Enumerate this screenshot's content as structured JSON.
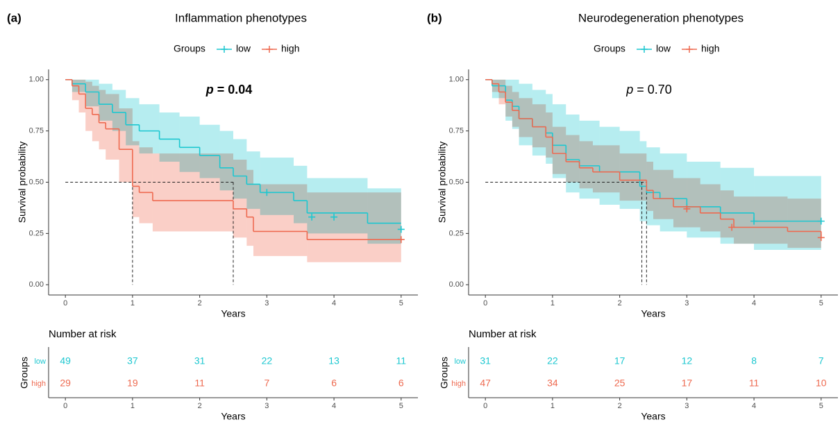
{
  "chart_data": [
    {
      "type": "survival",
      "panel": "(a)",
      "title": "Inflammation phenotypes",
      "legend_title": "Groups",
      "xlabel": "Years",
      "ylabel": "Survival probability",
      "xlim": [
        -0.25,
        5.25
      ],
      "ylim": [
        -0.05,
        1.05
      ],
      "xticks": [
        0,
        1,
        2,
        3,
        4,
        5
      ],
      "yticks": [
        {
          "value": 0,
          "label": "0.00"
        },
        {
          "value": 0.25,
          "label": "0.25"
        },
        {
          "value": 0.5,
          "label": "0.50"
        },
        {
          "value": 0.75,
          "label": "0.75"
        },
        {
          "value": 1,
          "label": "1.00"
        }
      ],
      "annotation": {
        "italic": "p",
        "text": "= 0.04",
        "bold": true
      },
      "median_y": 0.5,
      "medians": [
        1.0,
        2.5
      ],
      "risk_table": {
        "title": "Number at risk",
        "ylabel": "Groups",
        "xlabel": "Years"
      },
      "series": [
        {
          "name": "low",
          "color": "#1CC7D0",
          "x": [
            0,
            0.1,
            0.3,
            0.5,
            0.7,
            0.9,
            1.1,
            1.4,
            1.7,
            2.0,
            2.3,
            2.5,
            2.7,
            2.9,
            3.4,
            3.6,
            4.5,
            5
          ],
          "values": [
            1,
            0.98,
            0.94,
            0.88,
            0.84,
            0.78,
            0.75,
            0.71,
            0.67,
            0.63,
            0.57,
            0.53,
            0.49,
            0.45,
            0.41,
            0.35,
            0.3,
            0.3
          ],
          "lower": [
            1,
            0.94,
            0.87,
            0.8,
            0.75,
            0.68,
            0.64,
            0.6,
            0.55,
            0.52,
            0.46,
            0.42,
            0.37,
            0.34,
            0.3,
            0.25,
            0.2,
            0.2
          ],
          "upper": [
            1,
            1,
            1,
            0.98,
            0.95,
            0.91,
            0.88,
            0.84,
            0.82,
            0.78,
            0.75,
            0.71,
            0.65,
            0.62,
            0.58,
            0.52,
            0.47,
            0.47
          ],
          "censor_x": [
            3,
            3.67,
            4,
            5
          ],
          "censor_y": [
            0.45,
            0.33,
            0.33,
            0.27
          ],
          "at_risk": [
            49,
            37,
            31,
            22,
            13,
            11
          ]
        },
        {
          "name": "high",
          "color": "#EE6A50",
          "x": [
            0,
            0.1,
            0.2,
            0.3,
            0.4,
            0.5,
            0.6,
            0.8,
            1.0,
            1.1,
            1.3,
            2.5,
            2.7,
            2.8,
            3.6,
            5
          ],
          "values": [
            1,
            0.97,
            0.93,
            0.86,
            0.83,
            0.79,
            0.76,
            0.66,
            0.48,
            0.45,
            0.41,
            0.37,
            0.33,
            0.26,
            0.22,
            0.22
          ],
          "lower": [
            1,
            0.9,
            0.84,
            0.75,
            0.7,
            0.66,
            0.61,
            0.5,
            0.33,
            0.3,
            0.26,
            0.23,
            0.19,
            0.14,
            0.11,
            0.11
          ],
          "upper": [
            1,
            1,
            1,
            0.99,
            0.97,
            0.95,
            0.93,
            0.86,
            0.7,
            0.67,
            0.64,
            0.61,
            0.56,
            0.49,
            0.45,
            0.45
          ],
          "censor_x": [
            5
          ],
          "censor_y": [
            0.22
          ],
          "at_risk": [
            29,
            19,
            11,
            7,
            6,
            6
          ]
        }
      ]
    },
    {
      "type": "survival",
      "panel": "(b)",
      "title": "Neurodegeneration phenotypes",
      "legend_title": "Groups",
      "xlabel": "Years",
      "ylabel": "Survival probability",
      "xlim": [
        -0.25,
        5.25
      ],
      "ylim": [
        -0.05,
        1.05
      ],
      "xticks": [
        0,
        1,
        2,
        3,
        4,
        5
      ],
      "yticks": [
        {
          "value": 0,
          "label": "0.00"
        },
        {
          "value": 0.25,
          "label": "0.25"
        },
        {
          "value": 0.5,
          "label": "0.50"
        },
        {
          "value": 0.75,
          "label": "0.75"
        },
        {
          "value": 1,
          "label": "1.00"
        }
      ],
      "annotation": {
        "italic": "p",
        "text": "= 0.70",
        "bold": false
      },
      "median_y": 0.5,
      "medians": [
        2.33,
        2.4
      ],
      "risk_table": {
        "title": "Number at risk",
        "ylabel": "Groups",
        "xlabel": "Years"
      },
      "series": [
        {
          "name": "low",
          "color": "#1CC7D0",
          "x": [
            0,
            0.1,
            0.3,
            0.4,
            0.5,
            0.7,
            0.9,
            1.0,
            1.2,
            1.4,
            1.7,
            2.0,
            2.3,
            2.4,
            2.6,
            3.0,
            3.5,
            4.0,
            5
          ],
          "values": [
            1,
            0.97,
            0.9,
            0.87,
            0.81,
            0.77,
            0.74,
            0.68,
            0.61,
            0.58,
            0.55,
            0.55,
            0.48,
            0.45,
            0.42,
            0.38,
            0.35,
            0.31,
            0.31
          ],
          "lower": [
            1,
            0.91,
            0.8,
            0.76,
            0.68,
            0.63,
            0.59,
            0.52,
            0.45,
            0.42,
            0.39,
            0.37,
            0.31,
            0.29,
            0.26,
            0.23,
            0.2,
            0.17,
            0.17
          ],
          "upper": [
            1,
            1,
            1,
            1,
            0.98,
            0.95,
            0.93,
            0.88,
            0.83,
            0.8,
            0.77,
            0.75,
            0.7,
            0.67,
            0.64,
            0.6,
            0.57,
            0.53,
            0.53
          ],
          "censor_x": [
            3,
            4,
            5
          ],
          "censor_y": [
            0.38,
            0.31,
            0.31
          ],
          "at_risk": [
            31,
            22,
            17,
            12,
            8,
            7
          ]
        },
        {
          "name": "high",
          "color": "#EE6A50",
          "x": [
            0,
            0.1,
            0.2,
            0.3,
            0.4,
            0.5,
            0.7,
            0.9,
            1.0,
            1.2,
            1.4,
            1.6,
            2.0,
            2.4,
            2.5,
            2.8,
            3.2,
            3.5,
            3.7,
            4.5,
            5
          ],
          "values": [
            1,
            0.98,
            0.94,
            0.89,
            0.85,
            0.81,
            0.77,
            0.72,
            0.64,
            0.6,
            0.57,
            0.55,
            0.51,
            0.46,
            0.42,
            0.38,
            0.35,
            0.32,
            0.28,
            0.26,
            0.23
          ],
          "lower": [
            1,
            0.94,
            0.88,
            0.82,
            0.77,
            0.72,
            0.67,
            0.62,
            0.54,
            0.5,
            0.47,
            0.45,
            0.41,
            0.36,
            0.32,
            0.28,
            0.26,
            0.23,
            0.2,
            0.18,
            0.16
          ],
          "upper": [
            1,
            1,
            1,
            0.97,
            0.94,
            0.91,
            0.88,
            0.84,
            0.77,
            0.73,
            0.7,
            0.68,
            0.64,
            0.6,
            0.56,
            0.52,
            0.49,
            0.46,
            0.43,
            0.42,
            0.38
          ],
          "censor_x": [
            3.67,
            3,
            5
          ],
          "censor_y": [
            0.28,
            0.37,
            0.23
          ],
          "at_risk": [
            47,
            34,
            25,
            17,
            11,
            10
          ]
        }
      ]
    }
  ]
}
